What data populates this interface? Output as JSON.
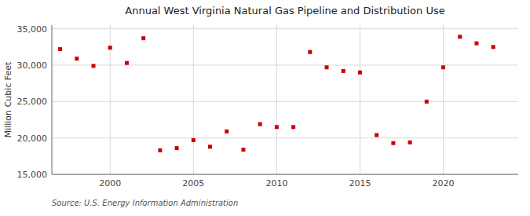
{
  "chart_data": {
    "type": "scatter",
    "title": "Annual West Virginia Natural Gas Pipeline and Distribution Use",
    "y_label": "Million Cubic Feet",
    "source": "Source: U.S. Energy Information Administration",
    "x": [
      1997,
      1998,
      1999,
      2000,
      2001,
      2002,
      2003,
      2004,
      2005,
      2006,
      2007,
      2008,
      2009,
      2010,
      2011,
      2012,
      2013,
      2014,
      2015,
      2016,
      2017,
      2018,
      2019,
      2020,
      2021,
      2022,
      2023
    ],
    "values": [
      32200,
      30900,
      29900,
      32400,
      30300,
      33700,
      18300,
      18600,
      19700,
      18800,
      20900,
      18400,
      21900,
      21500,
      21500,
      31800,
      29700,
      29200,
      29000,
      20400,
      19300,
      19400,
      25000,
      29700,
      33900,
      33000,
      32500
    ],
    "color": "#cc0000",
    "marker": "square",
    "xlim": [
      1996.5,
      2024.5
    ],
    "xticks": [
      2000,
      2005,
      2010,
      2015,
      2020
    ],
    "ylim": [
      15000,
      35500
    ],
    "yticks": [
      {
        "value": 15000,
        "label": "15,000"
      },
      {
        "value": 20000,
        "label": "20,000"
      },
      {
        "value": 25000,
        "label": "25,000"
      },
      {
        "value": 30000,
        "label": "30,000"
      },
      {
        "value": 35000,
        "label": "35,000"
      }
    ],
    "grid": true
  }
}
